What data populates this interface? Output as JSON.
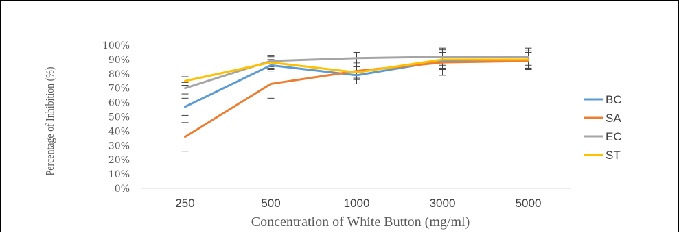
{
  "chart_data": {
    "type": "line",
    "title": "",
    "xlabel": "Concentration of White Button (mg/ml)",
    "ylabel": "Percentage of Inhibition (%)",
    "categories": [
      "250",
      "500",
      "1000",
      "3000",
      "5000"
    ],
    "yticks": [
      "0%",
      "10%",
      "20%",
      "30%",
      "40%",
      "50%",
      "60%",
      "70%",
      "80%",
      "90%",
      "100%"
    ],
    "ylim": [
      0,
      100
    ],
    "grid": false,
    "legend_position": "right",
    "series": [
      {
        "name": "BC",
        "color": "#5B9BD5",
        "values": [
          57,
          86,
          79,
          89,
          90
        ],
        "errors": [
          6,
          4,
          6,
          6,
          6
        ]
      },
      {
        "name": "SA",
        "color": "#ED7D31",
        "values": [
          36,
          73,
          82,
          88,
          89
        ],
        "errors": [
          10,
          10,
          6,
          9,
          6
        ]
      },
      {
        "name": "EC",
        "color": "#A5A5A5",
        "values": [
          70,
          89,
          91,
          92,
          92
        ],
        "errors": [
          4,
          4,
          4,
          6,
          6
        ]
      },
      {
        "name": "ST",
        "color": "#FFC000",
        "values": [
          75,
          88,
          81,
          90,
          90
        ],
        "errors": [
          3,
          4,
          4,
          6,
          6
        ]
      }
    ]
  }
}
